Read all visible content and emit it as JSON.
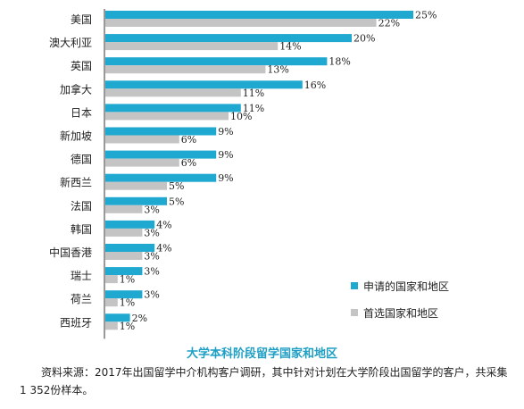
{
  "chart_data": {
    "type": "bar",
    "orientation": "horizontal",
    "title": "大学本科阶段留学国家和地区",
    "categories": [
      "美国",
      "澳大利亚",
      "英国",
      "加拿大",
      "日本",
      "新加坡",
      "德国",
      "新西兰",
      "法国",
      "韩国",
      "中国香港",
      "瑞士",
      "荷兰",
      "西班牙"
    ],
    "series": [
      {
        "name": "申请的国家和地区",
        "color": "#1fa8d0",
        "values": [
          25,
          20,
          18,
          16,
          11,
          9,
          9,
          9,
          5,
          4,
          4,
          3,
          3,
          2
        ]
      },
      {
        "name": "首选国家和地区",
        "color": "#c4c4c4",
        "values": [
          22,
          14,
          13,
          11,
          10,
          6,
          6,
          5,
          3,
          3,
          3,
          1,
          1,
          1
        ]
      }
    ],
    "value_suffix": "%",
    "xlim": [
      0,
      25
    ],
    "grid": false,
    "legend_position": "right"
  },
  "source_note": "资料来源：2017年出国留学中介机构客户调研，其中针对计划在大学阶段出国留学的客户，共采集1 352份样本。"
}
